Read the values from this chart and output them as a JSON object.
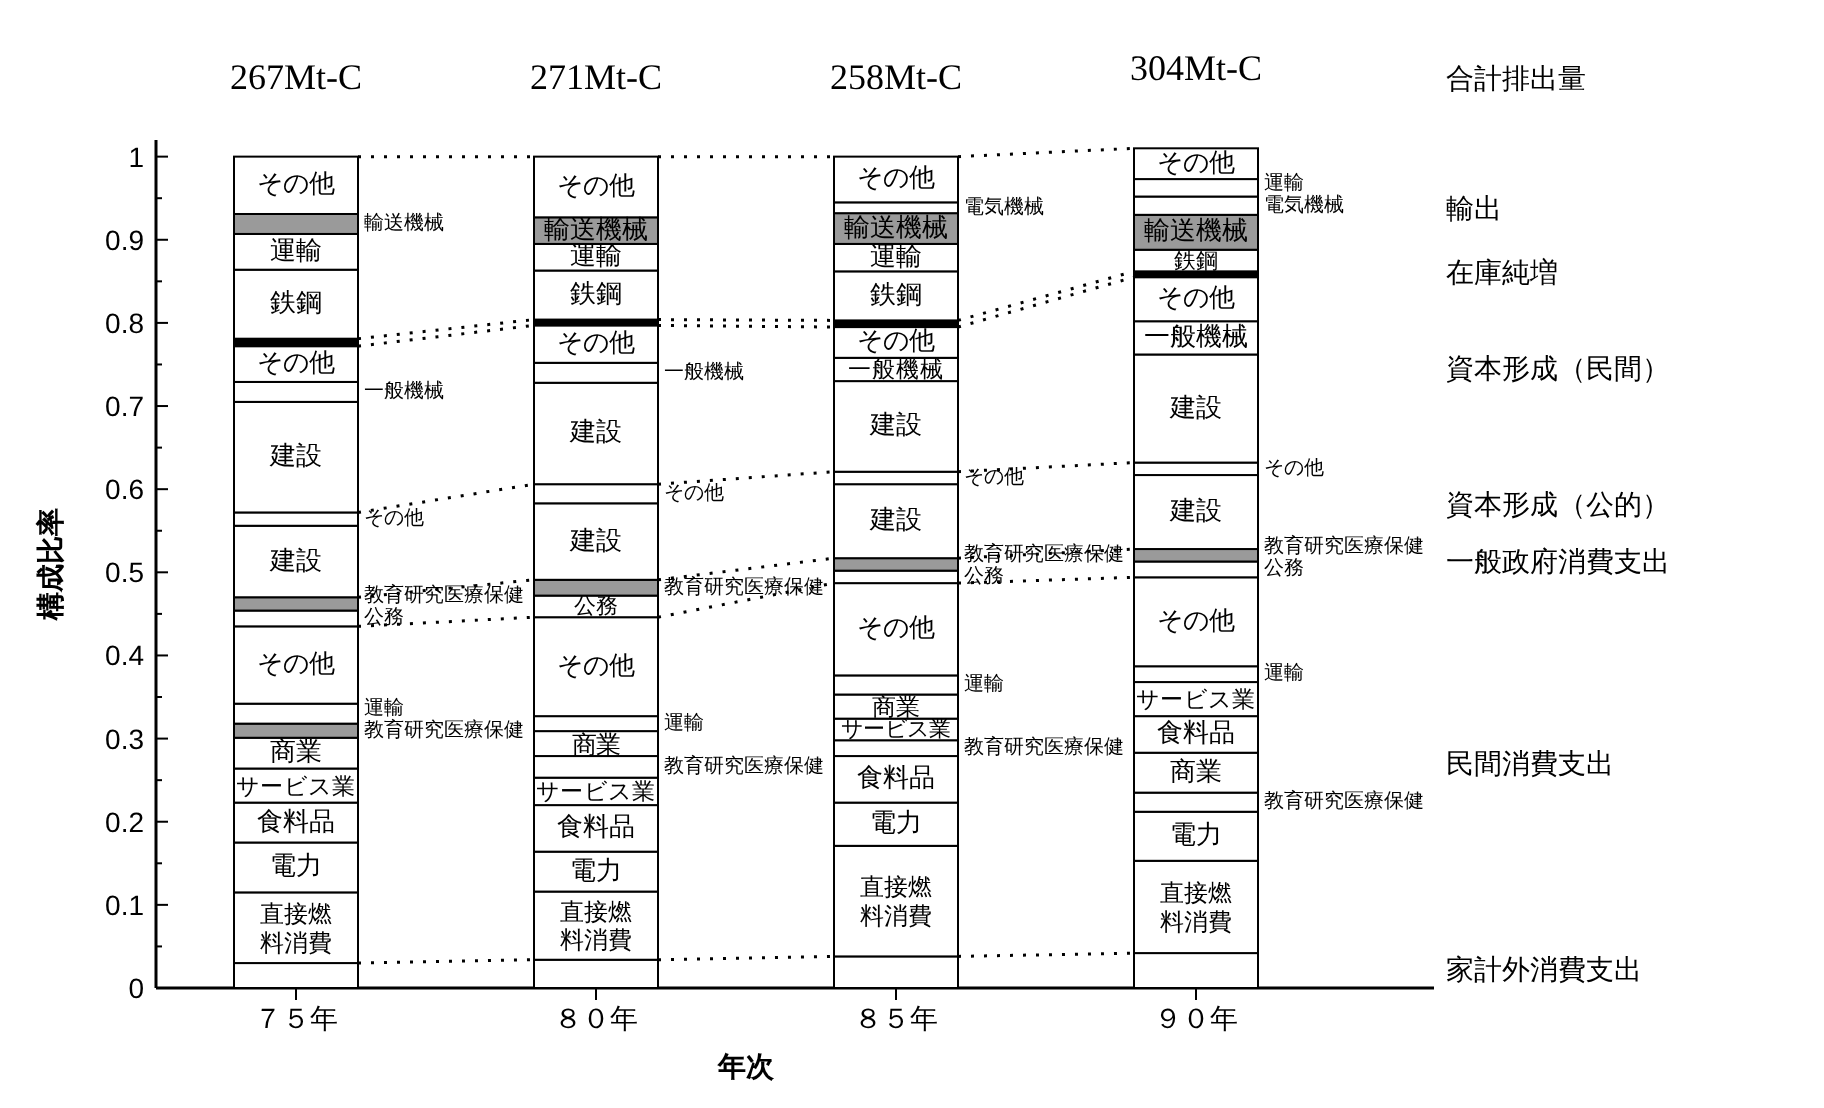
{
  "chart_data": {
    "type": "bar",
    "stacked": true,
    "ylabel": "構成比率",
    "xlabel": "年次",
    "categories": [
      "７５年",
      "８０年",
      "８５年",
      "９０年"
    ],
    "ylim": [
      0,
      1.02
    ],
    "yticks": [
      0,
      {
        "value": 0.05,
        "label": null
      },
      0.1,
      {
        "value": 0.15,
        "label": null
      },
      0.2,
      {
        "value": 0.25,
        "label": null
      },
      0.3,
      {
        "value": 0.35,
        "label": null
      },
      0.4,
      {
        "value": 0.45,
        "label": null
      },
      0.5,
      {
        "value": 0.55,
        "label": null
      },
      0.6,
      {
        "value": 0.65,
        "label": null
      },
      0.7,
      {
        "value": 0.75,
        "label": null
      },
      0.8,
      {
        "value": 0.85,
        "label": null
      },
      0.9,
      {
        "value": 0.95,
        "label": null
      },
      1
    ],
    "series": [
      {
        "color": "#ffffff",
        "values": [
          0.03,
          0.034,
          0.038,
          0.042
        ]
      },
      {
        "name": "直接燃料消費",
        "color": "#ffffff",
        "values": [
          0.085,
          0.082,
          0.133,
          0.111
        ]
      },
      {
        "name": "電力",
        "color": "#ffffff",
        "values": [
          0.06,
          0.048,
          0.052,
          0.059
        ]
      },
      {
        "name": "教育研究医療保健",
        "color": "#ffffff",
        "values": [
          null,
          null,
          null,
          0.023
        ]
      },
      {
        "name": "商業",
        "color": "#ffffff",
        "values": [
          null,
          null,
          null,
          0.048
        ]
      },
      {
        "name": "食料品",
        "color": "#ffffff",
        "values": [
          0.048,
          0.056,
          0.056,
          0.044
        ]
      },
      {
        "name": "教育研究医療保健",
        "color": "#ffffff",
        "values": [
          null,
          null,
          0.019,
          null
        ]
      },
      {
        "name": "サービス業",
        "color": "#ffffff",
        "values": [
          0.041,
          0.033,
          0.026,
          0.041
        ]
      },
      {
        "name": "教育研究医療保健",
        "color": "#ffffff",
        "values": [
          null,
          0.026,
          null,
          null
        ]
      },
      {
        "name": "商業",
        "color": "#ffffff",
        "values": [
          0.037,
          0.03,
          0.029,
          null
        ]
      },
      {
        "name": "教育研究医療保健",
        "color": "#9a9a9a",
        "values": [
          0.017,
          null,
          null,
          null
        ]
      },
      {
        "name": "運輸",
        "color": "#ffffff",
        "values": [
          0.024,
          0.018,
          0.023,
          0.019
        ]
      },
      {
        "name": "その他",
        "color": "#ffffff",
        "values": [
          0.093,
          0.119,
          0.111,
          0.107
        ]
      },
      {
        "name": "公務",
        "color": "#ffffff",
        "values": [
          0.019,
          0.026,
          0.015,
          0.019
        ]
      },
      {
        "name": "教育研究医療保健",
        "color": "#9a9a9a",
        "values": [
          0.016,
          0.019,
          0.015,
          0.015
        ]
      },
      {
        "name": "建設",
        "color": "#ffffff",
        "values": [
          0.086,
          0.092,
          0.089,
          0.089
        ]
      },
      {
        "name": "その他",
        "color": "#ffffff",
        "values": [
          0.016,
          0.023,
          0.015,
          0.015
        ]
      },
      {
        "name": "建設",
        "color": "#ffffff",
        "values": [
          0.133,
          0.122,
          0.109,
          0.13
        ]
      },
      {
        "name": "一般機械",
        "color": "#ffffff",
        "values": [
          0.024,
          0.024,
          0.028,
          0.04
        ]
      },
      {
        "name": "その他",
        "color": "#ffffff",
        "values": [
          0.043,
          0.045,
          0.037,
          0.053
        ]
      },
      {
        "color": "#000000",
        "values": [
          0.009,
          0.007,
          0.008,
          0.007
        ]
      },
      {
        "name": "鉄鋼",
        "color": "#ffffff",
        "values": [
          0.083,
          0.059,
          0.059,
          0.026
        ]
      },
      {
        "name": "運輸",
        "color": "#ffffff",
        "values": [
          0.043,
          0.032,
          0.033,
          null
        ]
      },
      {
        "name": "輸送機械",
        "color": "#9a9a9a",
        "values": [
          0.024,
          0.032,
          0.037,
          0.042
        ]
      },
      {
        "name": "電気機械",
        "color": "#ffffff",
        "values": [
          null,
          null,
          0.013,
          0.022
        ]
      },
      {
        "name": "運輸",
        "color": "#ffffff",
        "values": [
          null,
          null,
          null,
          0.021
        ]
      },
      {
        "name": "その他",
        "color": "#ffffff",
        "values": [
          0.069,
          0.073,
          0.055,
          0.037
        ]
      }
    ],
    "annotations": [
      "合計排出量",
      "輸出",
      "在庫純増",
      "資本形成（民間）",
      "資本形成（公的）",
      "一般政府消費支出",
      "民間消費支出",
      "家計外消費支出",
      {
        "text": "267Mt-C",
        "x": "７５年",
        "y": 1.0
      },
      {
        "text": "271Mt-C",
        "x": "８０年",
        "y": 1.0
      },
      {
        "text": "258Mt-C",
        "x": "８５年",
        "y": 1.0
      },
      {
        "text": "304Mt-C",
        "x": "９０年",
        "y": 1.01
      }
    ]
  }
}
